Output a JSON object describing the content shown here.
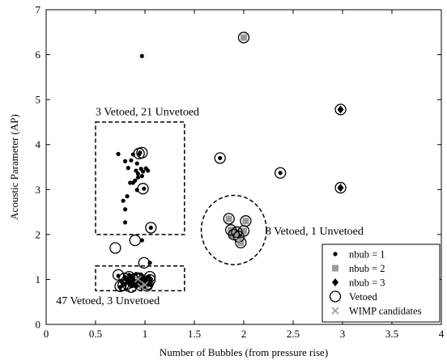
{
  "chart_data": {
    "type": "scatter",
    "title": "",
    "xlabel": "Number of Bubbles (from pressure rise)",
    "ylabel": "Acoustic Parameter (AP)",
    "xlim": [
      0,
      4
    ],
    "ylim": [
      0,
      7
    ],
    "xticks": [
      0,
      0.5,
      1,
      1.5,
      2,
      2.5,
      3,
      3.5,
      4
    ],
    "xtick_labels": [
      "0",
      "0.5",
      "1",
      "1.5",
      "2",
      "2.5",
      "3",
      "3.5",
      "4"
    ],
    "yticks": [
      0,
      1,
      2,
      3,
      4,
      5,
      6,
      7
    ],
    "ytick_labels": [
      "0",
      "1",
      "2",
      "3",
      "4",
      "5",
      "6",
      "7"
    ],
    "grid": false,
    "legend_position": "bottom-right",
    "colors": {
      "nbub1": "#000000",
      "nbub2": "#9a9a9a",
      "nbub3": "#000000",
      "vetoed": "#000000",
      "wimp": "#9a9a9a"
    },
    "series": [
      {
        "name": "nbub = 1",
        "marker": "dot",
        "x": [
          0.97,
          0.73,
          0.8,
          0.83,
          0.85,
          0.86,
          0.88,
          0.88,
          0.9,
          0.91,
          0.92,
          0.93,
          0.93,
          0.94,
          0.95,
          0.96,
          0.97,
          0.98,
          0.99,
          1.01,
          1.03,
          1.06,
          0.78,
          0.8,
          0.8,
          0.82,
          0.92,
          1.05,
          1.04,
          0.97,
          0.73,
          0.76,
          0.78,
          0.8,
          0.82,
          0.84,
          0.86,
          0.87,
          0.88,
          0.89,
          0.9,
          0.91,
          0.92,
          0.93,
          0.94,
          0.95,
          0.96,
          0.97,
          0.98,
          0.99,
          1.0,
          1.01,
          1.02,
          1.03,
          1.05,
          1.06,
          0.75,
          0.79,
          0.83,
          0.87,
          0.91,
          0.95,
          0.99,
          1.03,
          0.81,
          0.85,
          0.89,
          0.93,
          0.97,
          1.01,
          1.05,
          0.84,
          0.88,
          0.92,
          0.96,
          1.0,
          1.04,
          1.76,
          2.37,
          0.77,
          0.82,
          0.86,
          0.9,
          0.94,
          0.98,
          1.02,
          1.06,
          0.8,
          0.88,
          0.96
        ],
        "y": [
          5.97,
          3.79,
          3.63,
          3.48,
          3.15,
          3.65,
          3.78,
          3.15,
          3.2,
          3.42,
          3.58,
          3.35,
          3.27,
          3.78,
          3.82,
          3.46,
          3.3,
          3.4,
          3.02,
          3.47,
          3.42,
          2.15,
          2.75,
          2.56,
          2.27,
          2.85,
          2.99,
          1.37,
          1.06,
          1.87,
          1.08,
          0.97,
          0.88,
          1.02,
          0.93,
          1.1,
          0.85,
          0.95,
          1.05,
          0.98,
          0.9,
          1.12,
          0.87,
          0.96,
          1.03,
          0.88,
          0.94,
          1.01,
          1.07,
          0.86,
          0.92,
          0.99,
          0.89,
          1.04,
          0.95,
          0.87,
          0.83,
          0.9,
          0.98,
          1.06,
          0.84,
          0.93,
          0.97,
          0.88,
          1.0,
          0.91,
          1.08,
          0.95,
          0.83,
          0.99,
          0.92,
          1.04,
          0.86,
          0.97,
          0.9,
          1.02,
          0.94,
          3.7,
          3.37,
          0.93,
          1.0,
          0.88,
          0.96,
          1.03,
          0.86,
          0.92,
          1.01,
          1.05,
          1.09,
          1.11
        ]
      },
      {
        "name": "nbub = 2",
        "marker": "square",
        "x": [
          2.0,
          1.85,
          1.9,
          1.95,
          1.97,
          2.02,
          1.87,
          1.93,
          2.0,
          1.88
        ],
        "y": [
          6.38,
          2.35,
          2.0,
          1.95,
          1.82,
          2.3,
          2.1,
          2.05,
          2.08,
          1.98
        ]
      },
      {
        "name": "nbub = 3",
        "marker": "diamond",
        "x": [
          2.98,
          2.98
        ],
        "y": [
          4.78,
          3.04
        ]
      },
      {
        "name": "Vetoed",
        "marker": "circle",
        "x": [
          0.94,
          0.98,
          0.97,
          1.06,
          0.99,
          0.9,
          0.7,
          1.05,
          1.76,
          2.37,
          2.0,
          1.85,
          1.9,
          1.95,
          1.97,
          2.02,
          1.87,
          1.93,
          2.0,
          2.98,
          2.98,
          0.75,
          0.82,
          0.86,
          0.9,
          0.95,
          0.98,
          1.02,
          1.05,
          0.79,
          0.84,
          0.88,
          0.93,
          0.97,
          1.03,
          0.73,
          0.78,
          0.92
        ],
        "y": [
          3.8,
          3.02,
          3.82,
          2.15,
          1.37,
          1.87,
          1.7,
          1.06,
          3.7,
          3.37,
          6.38,
          2.35,
          2.0,
          1.95,
          1.82,
          2.3,
          2.1,
          2.05,
          2.08,
          4.78,
          3.04,
          0.85,
          0.9,
          0.83,
          0.95,
          0.88,
          0.92,
          0.86,
          0.99,
          1.02,
          1.06,
          0.97,
          1.03,
          0.96,
          0.9,
          1.1,
          0.87,
          1.01
        ]
      },
      {
        "name": "WIMP candidates",
        "marker": "cross",
        "x": [
          0.93,
          1.0,
          1.95,
          0.96
        ],
        "y": [
          1.01,
          0.88,
          1.86,
          0.84
        ]
      }
    ],
    "annotations": [
      {
        "text": "3 Vetoed, 21 Unvetoed",
        "x": 0.5,
        "y": 4.65,
        "anchor": "start"
      },
      {
        "text": "8 Vetoed, 1 Unvetoed",
        "x": 2.22,
        "y": 2.0,
        "anchor": "start"
      },
      {
        "text": "47 Vetoed, 3 Unvetoed",
        "x": 0.1,
        "y": 0.45,
        "anchor": "start"
      }
    ],
    "regions": [
      {
        "shape": "rect",
        "x0": 0.5,
        "x1": 1.4,
        "y0": 2.0,
        "y1": 4.5
      },
      {
        "shape": "rect",
        "x0": 0.5,
        "x1": 1.4,
        "y0": 0.75,
        "y1": 1.3
      },
      {
        "shape": "ellipse",
        "cx": 1.9,
        "cy": 2.1,
        "rx": 0.33,
        "ry": 0.77
      }
    ]
  }
}
